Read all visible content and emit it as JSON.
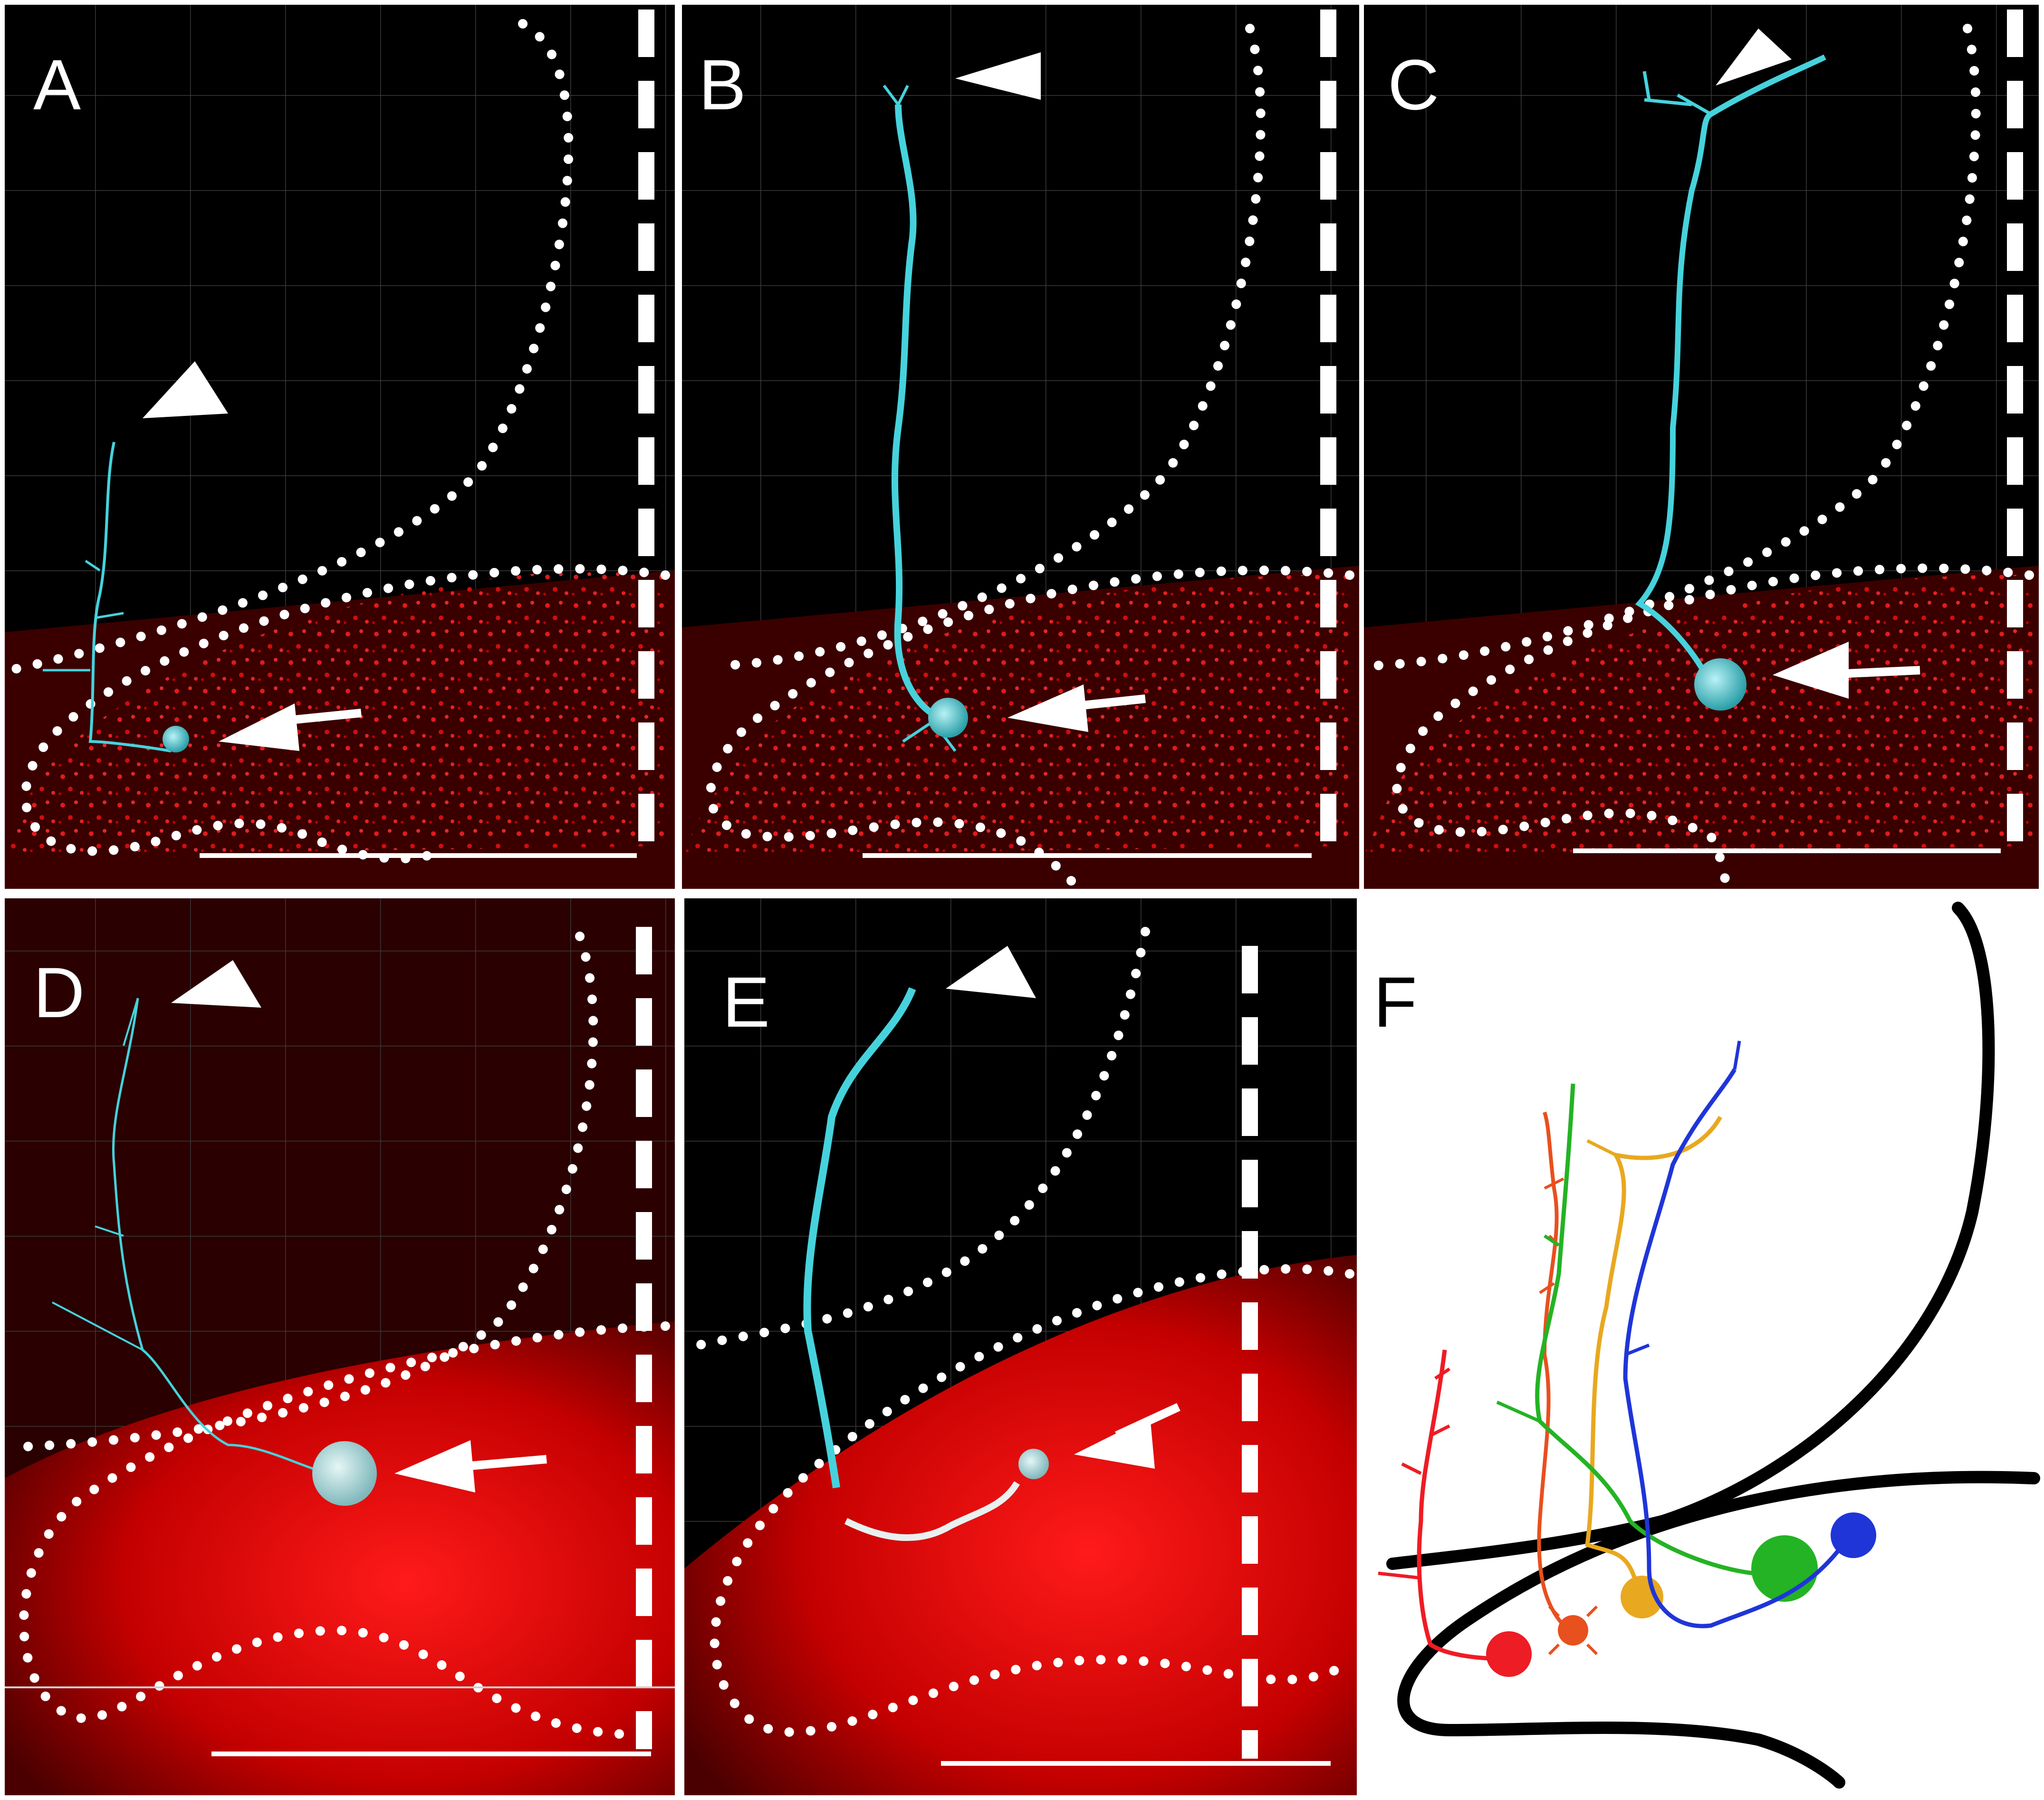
{
  "panels": [
    {
      "letter": "A",
      "letter_color": "#ffffff"
    },
    {
      "letter": "B",
      "letter_color": "#ffffff"
    },
    {
      "letter": "C",
      "letter_color": "#ffffff"
    },
    {
      "letter": "D",
      "letter_color": "#ffffff"
    },
    {
      "letter": "E",
      "letter_color": "#ffffff"
    },
    {
      "letter": "F",
      "letter_color": "#000000"
    }
  ],
  "colors": {
    "background_black": "#000000",
    "fluorescence_red": "#e00000",
    "traced_neuron_cyan": "#46d2dc",
    "annotation_white": "#ffffff",
    "schematic_outline_black": "#000000",
    "schematic_neuron_colors": [
      "#ee1c24",
      "#e8501e",
      "#e8a820",
      "#24b324",
      "#1f35d8"
    ]
  },
  "icons": [
    "arrowhead-icon",
    "arrow-icon",
    "scale-bar"
  ]
}
